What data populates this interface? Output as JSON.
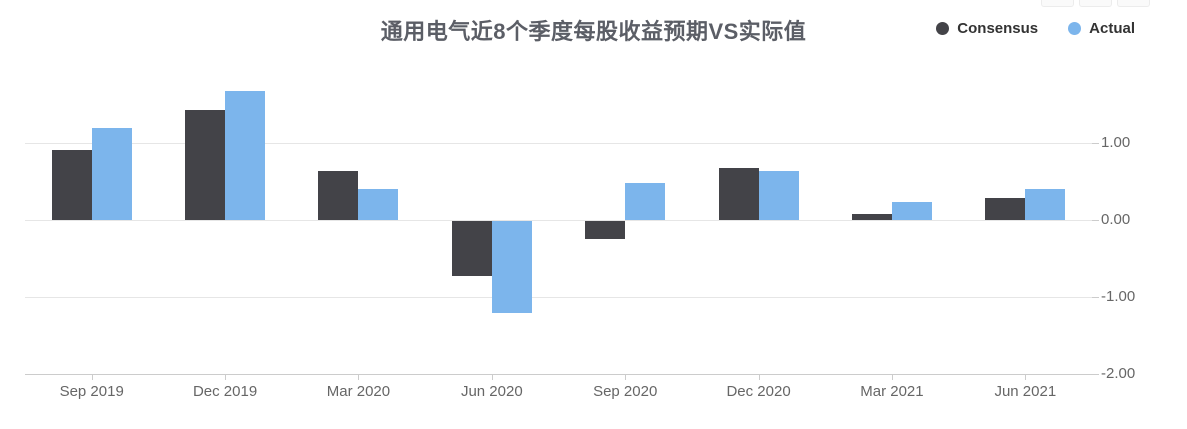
{
  "title": "通用电气近8个季度每股收益预期VS实际值",
  "legend": {
    "items": [
      {
        "label": "Consensus",
        "color": "#434348"
      },
      {
        "label": "Actual",
        "color": "#7cb5ec"
      }
    ]
  },
  "chart_data": {
    "type": "bar",
    "title": "通用电气近8个季度每股收益预期VS实际值",
    "categories": [
      "Sep 2019",
      "Dec 2019",
      "Mar 2020",
      "Jun 2020",
      "Sep 2020",
      "Dec 2020",
      "Mar 2021",
      "Jun 2021"
    ],
    "series": [
      {
        "name": "Consensus",
        "color": "#434348",
        "values": [
          0.91,
          1.43,
          0.64,
          -0.72,
          -0.24,
          0.68,
          0.08,
          0.28
        ]
      },
      {
        "name": "Actual",
        "color": "#7cb5ec",
        "values": [
          1.2,
          1.68,
          0.4,
          -1.2,
          0.48,
          0.64,
          0.24,
          0.4
        ]
      }
    ],
    "xlabel": "",
    "ylabel": "",
    "ylim": [
      -2.0,
      2.0
    ],
    "yticks": [
      {
        "value": 1,
        "label": "1.00"
      },
      {
        "value": 0,
        "label": "0.00"
      },
      {
        "value": -1,
        "label": "-1.00"
      },
      {
        "value": -2,
        "label": "-2.00"
      }
    ],
    "grid": true,
    "legend_position": "top-right",
    "y_axis_side": "right"
  }
}
